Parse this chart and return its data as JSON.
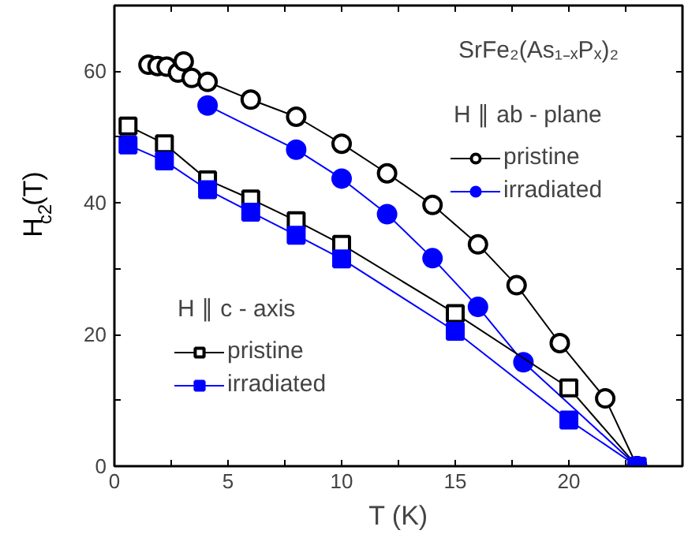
{
  "chart_data": {
    "type": "line",
    "xlabel": "T (K)",
    "ylabel": "H$_{c2}$(T)",
    "annotations": [
      "SrFe₂(As₁₋ₓPₓ)₂",
      "H ∥ ab - plane",
      "H ∥ c - axis"
    ],
    "xlim": [
      0,
      25
    ],
    "ylim": [
      0,
      70
    ],
    "xticks": [
      0,
      {
        "value": 2.5,
        "label": null
      },
      5,
      {
        "value": 7.5,
        "label": null
      },
      10,
      {
        "value": 12.5,
        "label": null
      },
      15,
      {
        "value": 17.5,
        "label": null
      },
      20,
      {
        "value": 22.5,
        "label": null
      }
    ],
    "yticks": [
      0,
      {
        "value": 10,
        "label": null
      },
      20,
      {
        "value": 30,
        "label": null
      },
      40,
      {
        "value": 50,
        "label": null
      },
      60
    ],
    "legend": "right",
    "grid": false,
    "line_style": "solid",
    "series": [
      {
        "name": "pristine",
        "color": "#000000",
        "marker": "circle",
        "x": [
          1.5,
          1.9,
          2.3,
          2.8,
          3.05,
          3.4,
          4.1,
          6,
          8,
          10,
          12,
          14,
          16,
          17.7,
          19.6,
          21.6,
          23
        ],
        "values": [
          61,
          60.8,
          60.7,
          59.8,
          61.5,
          59,
          58.4,
          55.7,
          53.1,
          49,
          44.5,
          39.7,
          33.7,
          27.5,
          18.7,
          10.3,
          0
        ]
      },
      {
        "name": "irradiated",
        "color": "#0000ff",
        "marker": "circle",
        "x": [
          4.1,
          8,
          10,
          12,
          14,
          16,
          18,
          23
        ],
        "values": [
          54.8,
          48.1,
          43.7,
          38.3,
          31.6,
          24.2,
          15.8,
          0
        ]
      },
      {
        "name": "pristine",
        "color": "#000000",
        "marker": "square",
        "x": [
          0.6,
          2.2,
          4.1,
          6,
          8,
          10,
          15,
          20,
          23
        ],
        "values": [
          51.7,
          49,
          43.5,
          40.6,
          37.3,
          33.7,
          23.2,
          11.9,
          0
        ]
      },
      {
        "name": "irradiated",
        "color": "#0000ff",
        "marker": "square",
        "x": [
          0.6,
          2.2,
          4.1,
          6,
          8,
          10,
          15,
          20,
          23
        ],
        "values": [
          48.8,
          46.4,
          42,
          38.6,
          35.1,
          31.5,
          20.5,
          7,
          0
        ]
      }
    ]
  }
}
